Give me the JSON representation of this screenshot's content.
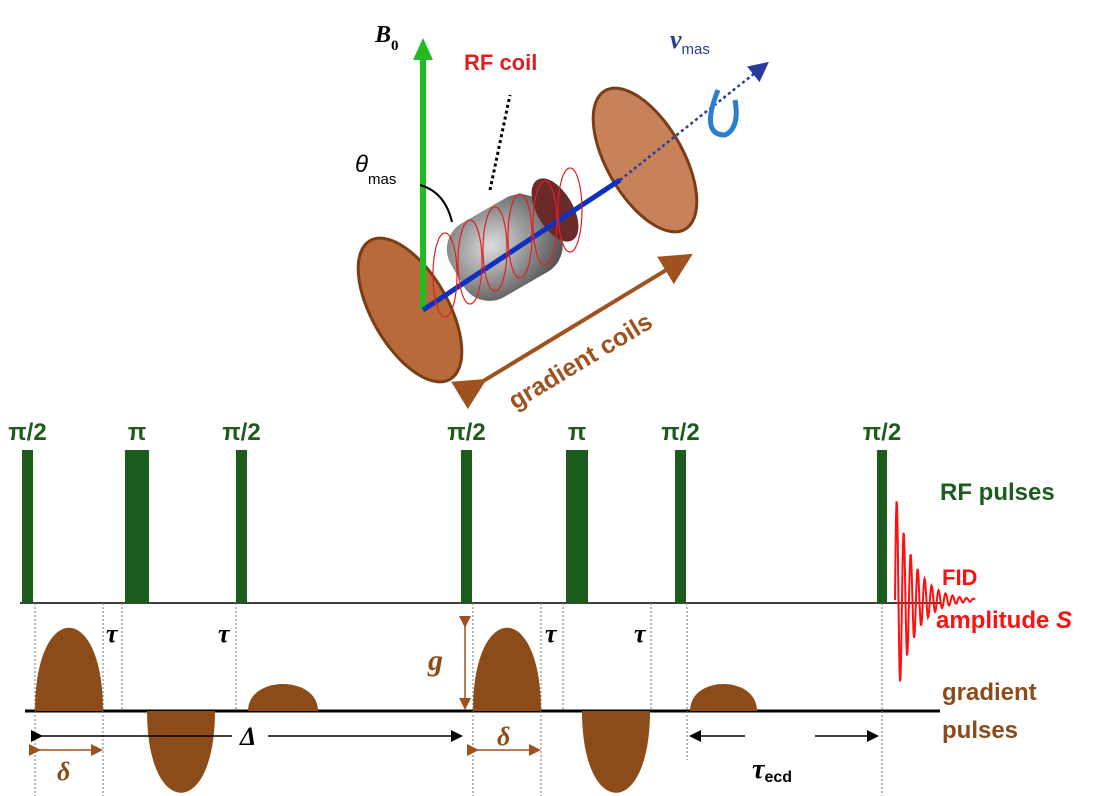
{
  "apparatus": {
    "b0": {
      "symbol": "B",
      "sub": "0"
    },
    "rf_coil": "RF coil",
    "spin": {
      "symbol": "ν",
      "sub": "mas"
    },
    "angle": {
      "symbol": "θ",
      "sub": "mas"
    },
    "gradient_coils": "gradient coils"
  },
  "sequence": {
    "rf_pulses": [
      "π/2",
      "π",
      "π/2",
      "π/2",
      "π",
      "π/2",
      "π/2"
    ],
    "rf_label": "RF pulses",
    "fid_label": "FID",
    "amplitude_label": {
      "text": "amplitude",
      "symbol": "S"
    },
    "gradient_label": [
      "gradient",
      "pulses"
    ],
    "taus": [
      "τ",
      "τ",
      "τ",
      "τ"
    ],
    "g": "g",
    "big_delta": "Δ",
    "small_delta": [
      "δ",
      "δ"
    ],
    "tau_ecd": {
      "symbol": "τ",
      "sub": "ecd"
    }
  }
}
